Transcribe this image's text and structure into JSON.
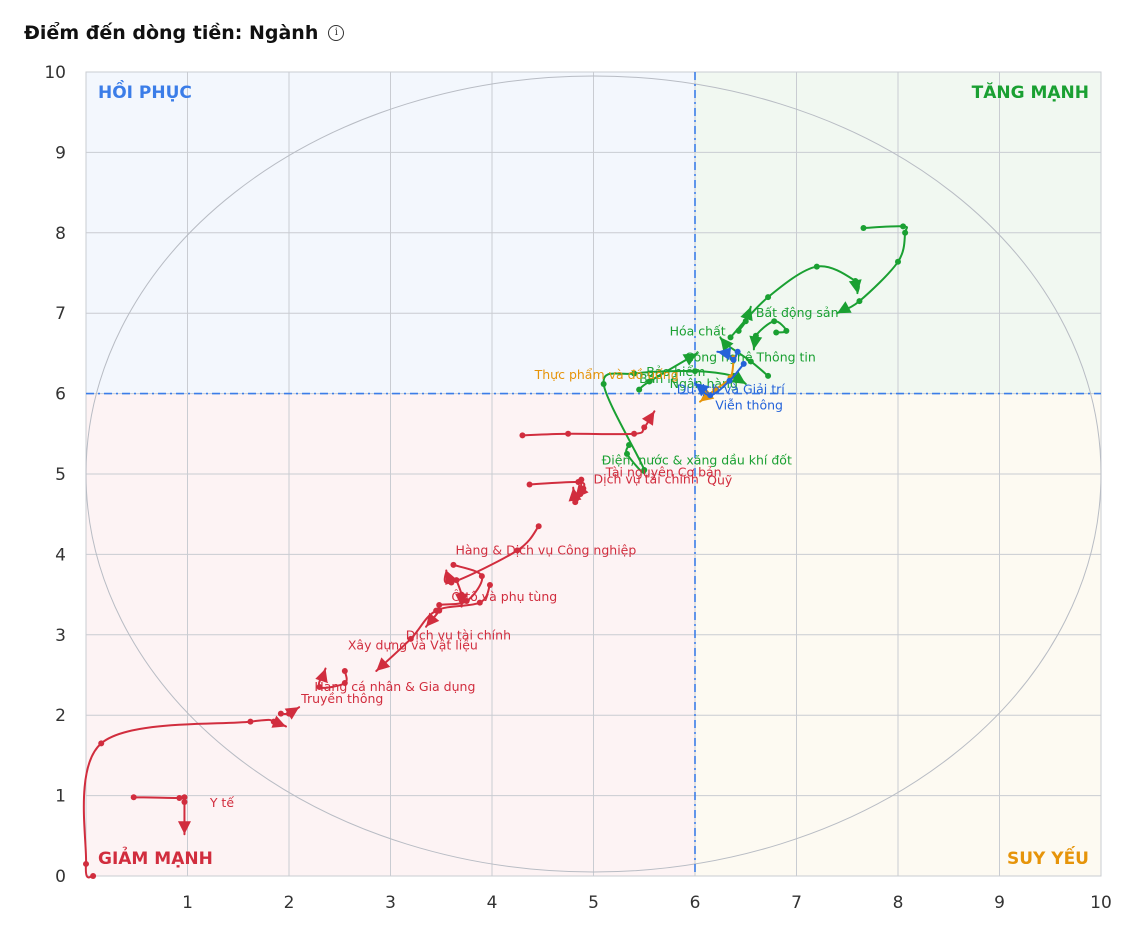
{
  "header": {
    "title": "Điểm đến dòng tiền: Ngành",
    "info_icon": "info-circle-icon"
  },
  "chart_data": {
    "type": "scatter",
    "title": "Điểm đến dòng tiền: Ngành",
    "xlim": [
      0,
      10
    ],
    "ylim": [
      0,
      10
    ],
    "x_ticks": [
      1,
      2,
      3,
      4,
      5,
      6,
      7,
      8,
      9,
      10
    ],
    "y_ticks": [
      0,
      1,
      2,
      3,
      4,
      5,
      6,
      7,
      8,
      9,
      10
    ],
    "grid": true,
    "threshold": {
      "x": 6,
      "y": 6
    },
    "quadrants": [
      {
        "name": "HỒI PHỤC",
        "position": "top-left",
        "color": "#3b7de8",
        "bg": "#f3f7fd"
      },
      {
        "name": "TĂNG MẠNH",
        "position": "top-right",
        "color": "#1aa032",
        "bg": "#f1f8f1"
      },
      {
        "name": "GIẢM MẠNH",
        "position": "bottom-left",
        "color": "#d12d3e",
        "bg": "#fdf3f4"
      },
      {
        "name": "SUY YẾU",
        "position": "bottom-right",
        "color": "#e6940a",
        "bg": "#fdfaf2"
      }
    ],
    "colors": {
      "green": "#1aa032",
      "red": "#d12d3e",
      "blue": "#2563d9",
      "orange": "#e6940a"
    },
    "series": [
      {
        "name": "Bất động sản",
        "color": "#1aa032",
        "label_at": [
          6.6,
          6.95
        ],
        "points": [
          [
            7.66,
            8.06
          ],
          [
            8.05,
            8.08
          ],
          [
            8.07,
            8.0
          ],
          [
            8.0,
            7.64
          ],
          [
            7.62,
            7.15
          ],
          [
            7.4,
            7.0
          ]
        ]
      },
      {
        "name": "Hóa chất",
        "color": "#1aa032",
        "label_at": [
          5.75,
          6.72
        ],
        "points": [
          [
            6.35,
            6.7
          ],
          [
            6.72,
            7.2
          ],
          [
            7.2,
            7.58
          ],
          [
            7.58,
            7.4
          ],
          [
            7.6,
            7.25
          ]
        ]
      },
      {
        "name": "Công nghệ Thông tin",
        "color": "#1aa032",
        "label_at": [
          5.9,
          6.4
        ],
        "points": [
          [
            6.8,
            6.76
          ],
          [
            6.9,
            6.78
          ],
          [
            6.78,
            6.9
          ],
          [
            6.6,
            6.72
          ],
          [
            6.58,
            6.55
          ]
        ]
      },
      {
        "name": "Bảo hiểm",
        "color": "#1aa032",
        "label_at": [
          5.52,
          6.22
        ],
        "points": [
          [
            6.43,
            6.78
          ],
          [
            6.5,
            6.9
          ],
          [
            6.55,
            7.08
          ]
        ]
      },
      {
        "name": "Ngân hàng",
        "color": "#1aa032",
        "label_at": [
          5.75,
          6.07
        ],
        "points": [
          [
            6.72,
            6.22
          ],
          [
            6.55,
            6.4
          ],
          [
            6.3,
            6.62
          ],
          [
            6.25,
            6.7
          ]
        ]
      },
      {
        "name": "Điện, nước & xăng dầu khí đốt",
        "color": "#1aa032",
        "label_at": [
          5.08,
          5.12
        ],
        "points": [
          [
            5.35,
            5.36
          ],
          [
            5.33,
            5.25
          ],
          [
            5.5,
            5.05
          ],
          [
            5.1,
            6.12
          ],
          [
            5.4,
            6.25
          ],
          [
            6.0,
            6.28
          ],
          [
            6.38,
            6.22
          ],
          [
            6.5,
            6.12
          ]
        ]
      },
      {
        "name": "Bán lẻ",
        "color": "#1aa032",
        "label_at": [
          5.45,
          6.13
        ],
        "points": [
          [
            5.45,
            6.05
          ],
          [
            5.55,
            6.15
          ],
          [
            6.02,
            6.5
          ]
        ]
      },
      {
        "name": "Thực phẩm và đồ uống",
        "color": "#e6940a",
        "label_at": [
          4.42,
          6.18
        ],
        "points": [
          [
            6.38,
            6.44
          ],
          [
            6.35,
            6.2
          ],
          [
            6.2,
            6.05
          ],
          [
            6.05,
            5.9
          ]
        ]
      },
      {
        "name": "Viễn thông",
        "color": "#2563d9",
        "label_at": [
          6.2,
          5.8
        ],
        "points": [
          [
            6.48,
            6.37
          ],
          [
            6.34,
            6.16
          ],
          [
            6.15,
            5.98
          ],
          [
            6.0,
            6.13
          ]
        ]
      },
      {
        "name": "Du lịch và Giải trí",
        "color": "#2563d9",
        "label_at": [
          5.82,
          6.0
        ],
        "points": [
          [
            6.42,
            6.52
          ],
          [
            6.38,
            6.42
          ],
          [
            6.32,
            6.5
          ],
          [
            6.22,
            6.52
          ]
        ]
      },
      {
        "name": "Tài nguyên Cơ bản",
        "color": "#d12d3e",
        "label_at": [
          5.12,
          4.97
        ],
        "points": [
          [
            4.3,
            5.48
          ],
          [
            4.75,
            5.5
          ],
          [
            5.4,
            5.5
          ],
          [
            5.5,
            5.58
          ],
          [
            5.6,
            5.78
          ]
        ]
      },
      {
        "name": "Dịch vụ tài chính",
        "color": "#d12d3e",
        "label_at": [
          5.0,
          4.88
        ],
        "points": [
          [
            4.88,
            4.93
          ],
          [
            4.87,
            4.75
          ],
          [
            4.82,
            4.65
          ],
          [
            4.8,
            4.83
          ]
        ]
      },
      {
        "name": "Quỹ",
        "color": "#d12d3e",
        "label_at": [
          6.12,
          4.87
        ],
        "points": [
          [
            4.37,
            4.87
          ],
          [
            4.85,
            4.9
          ],
          [
            4.9,
            4.82
          ],
          [
            4.82,
            4.7
          ]
        ]
      },
      {
        "name": "Hàng & Dịch vụ Công nghiệp",
        "color": "#d12d3e",
        "label_at": [
          3.64,
          4.0
        ],
        "points": [
          [
            4.46,
            4.35
          ],
          [
            4.25,
            4.05
          ],
          [
            3.6,
            3.65
          ],
          [
            3.55,
            3.8
          ]
        ]
      },
      {
        "name": "Ô tô và phụ tùng",
        "color": "#d12d3e",
        "label_at": [
          3.6,
          3.42
        ],
        "points": [
          [
            3.62,
            3.87
          ],
          [
            3.9,
            3.73
          ],
          [
            3.75,
            3.42
          ],
          [
            3.48,
            3.37
          ],
          [
            3.48,
            3.3
          ],
          [
            3.35,
            3.1
          ]
        ]
      },
      {
        "name": "Xây dựng và Vật liệu",
        "color": "#d12d3e",
        "label_at": [
          2.58,
          2.82
        ],
        "points": [
          [
            3.98,
            3.62
          ],
          [
            3.88,
            3.4
          ],
          [
            3.45,
            3.3
          ],
          [
            3.2,
            2.95
          ],
          [
            2.86,
            2.55
          ]
        ]
      },
      {
        "name": "Dịch vụ tài chính",
        "color": "#d12d3e",
        "label_at": [
          3.15,
          2.94
        ],
        "points": [
          [
            3.65,
            3.68
          ],
          [
            3.7,
            3.5
          ],
          [
            3.7,
            3.35
          ]
        ]
      },
      {
        "name": "Hàng cá nhân & Gia dụng",
        "color": "#d12d3e",
        "label_at": [
          2.25,
          2.3
        ],
        "points": [
          [
            2.55,
            2.55
          ],
          [
            2.55,
            2.4
          ],
          [
            2.3,
            2.35
          ],
          [
            2.36,
            2.58
          ]
        ]
      },
      {
        "name": "Truyền thông",
        "color": "#d12d3e",
        "label_at": [
          2.12,
          2.15
        ],
        "points": [
          [
            1.92,
            2.02
          ],
          [
            2.0,
            2.02
          ],
          [
            2.1,
            2.1
          ]
        ]
      },
      {
        "name": "Y tế",
        "color": "#d12d3e",
        "label_at": [
          1.22,
          0.86
        ],
        "points": [
          [
            0.47,
            0.98
          ],
          [
            0.92,
            0.97
          ],
          [
            0.97,
            0.98
          ],
          [
            0.97,
            0.92
          ],
          [
            0.97,
            0.52
          ]
        ]
      },
      {
        "name": "",
        "color": "#d12d3e",
        "label_at": null,
        "points": [
          [
            0.07,
            0.0
          ],
          [
            0.0,
            0.15
          ],
          [
            0.15,
            1.65
          ],
          [
            1.62,
            1.92
          ],
          [
            1.85,
            1.92
          ],
          [
            1.97,
            1.86
          ]
        ]
      }
    ]
  }
}
